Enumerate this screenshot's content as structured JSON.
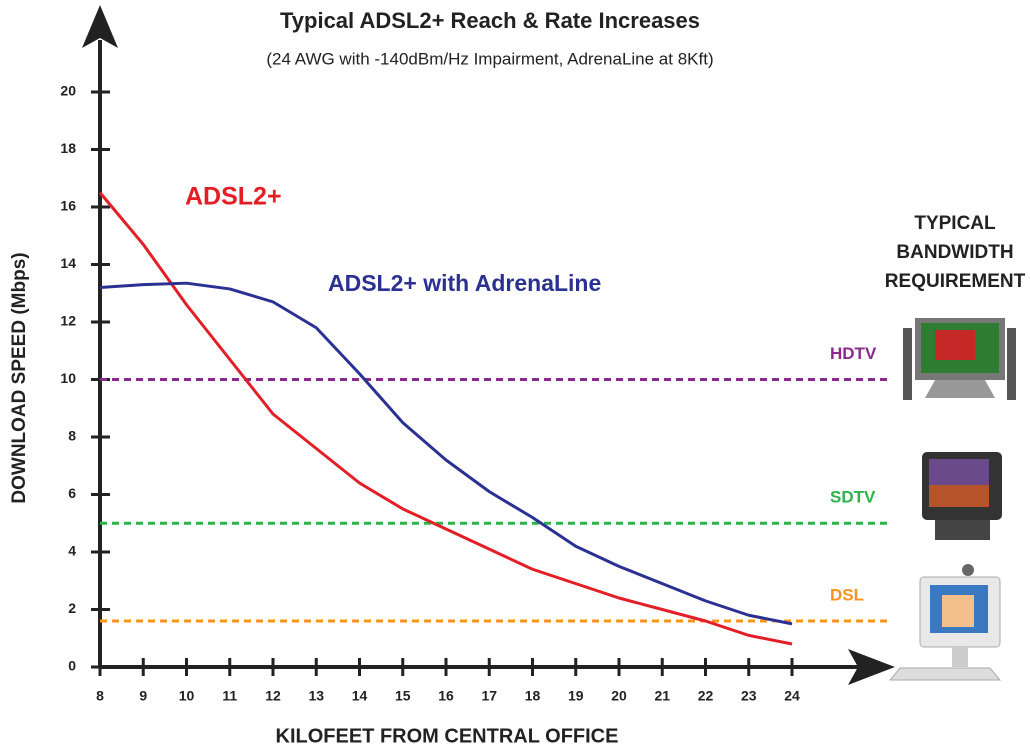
{
  "chart_data": {
    "type": "line",
    "title": "Typical ADSL2+ Reach & Rate Increases",
    "subtitle": "(24 AWG with -140dBm/Hz Impairment, AdrenaLine at 8Kft)",
    "x_label": "KILOFEET FROM CENTRAL OFFICE",
    "y_label": "DOWNLOAD SPEED (Mbps)",
    "x": [
      8,
      9,
      10,
      11,
      12,
      13,
      14,
      15,
      16,
      17,
      18,
      19,
      20,
      21,
      22,
      23,
      24
    ],
    "series": [
      {
        "name": "ADSL2+",
        "color": "#e41e26",
        "values": [
          16.5,
          14.7,
          12.6,
          10.7,
          8.8,
          7.6,
          6.4,
          5.5,
          4.8,
          4.1,
          3.4,
          2.9,
          2.4,
          2.0,
          1.6,
          1.1,
          0.8
        ]
      },
      {
        "name": "ADSL2+ with AdrenaLine",
        "color": "#2b3192",
        "values": [
          13.2,
          13.3,
          13.35,
          13.15,
          12.7,
          11.8,
          10.2,
          8.5,
          7.2,
          6.1,
          5.2,
          4.2,
          3.5,
          2.9,
          2.3,
          1.8,
          1.5
        ]
      }
    ],
    "reference_lines": [
      {
        "name": "HDTV",
        "value": 10,
        "color": "#8b2a8b"
      },
      {
        "name": "SDTV",
        "value": 5,
        "color": "#2db34a"
      },
      {
        "name": "DSL",
        "value": 1.6,
        "color": "#f7941d"
      }
    ],
    "requirement_heading": [
      "TYPICAL",
      "BANDWIDTH",
      "REQUIREMENT"
    ],
    "xlim": [
      8,
      24
    ],
    "ylim": [
      0,
      20
    ],
    "xticks": [
      8,
      9,
      10,
      11,
      12,
      13,
      14,
      15,
      16,
      17,
      18,
      19,
      20,
      21,
      22,
      23,
      24
    ],
    "yticks": [
      0,
      2,
      4,
      6,
      8,
      10,
      12,
      14,
      16,
      18,
      20
    ]
  }
}
